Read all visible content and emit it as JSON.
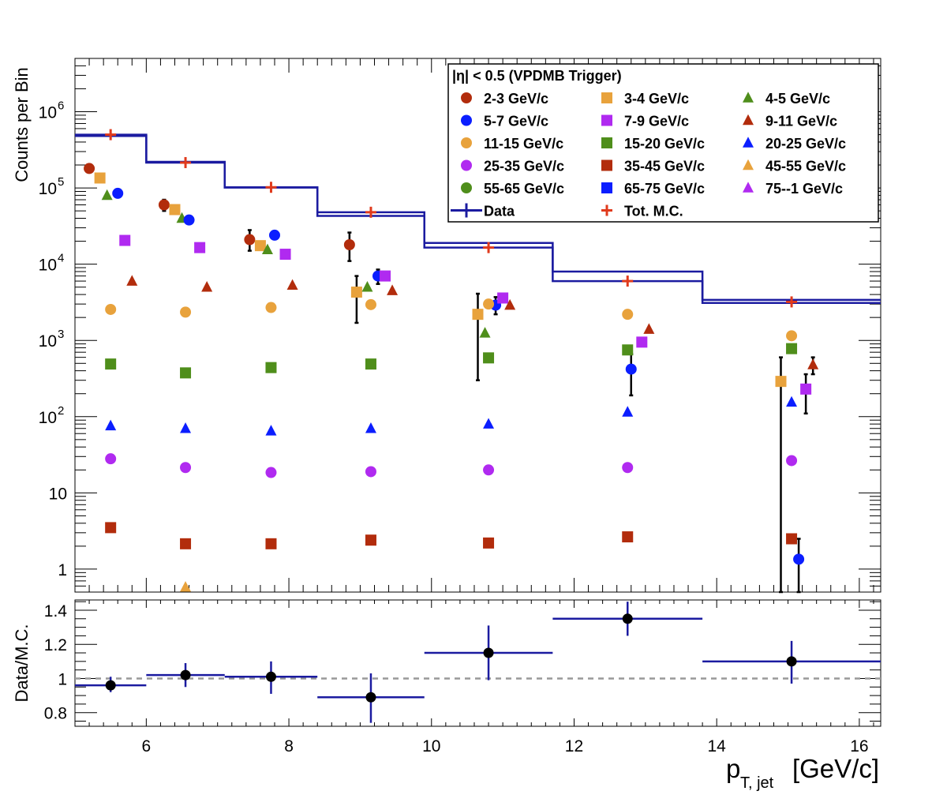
{
  "chart_data": [
    {
      "type": "scatter",
      "ylabel": "Counts per Bin",
      "xlabel": "p",
      "xlabel_sub": "T, jet",
      "xlabel_unit": "[GeV/c]",
      "xlim": [
        5.0,
        16.3
      ],
      "ylim": [
        0.5,
        5000000
      ],
      "yscale": "log",
      "grid": false,
      "x_ticks": [
        6,
        8,
        10,
        12,
        14,
        16
      ],
      "y_ticks": [
        {
          "value": 1,
          "label": "1",
          "exp": ""
        },
        {
          "value": 10,
          "label": "10",
          "exp": ""
        },
        {
          "value": 100,
          "label": "10",
          "exp": "2"
        },
        {
          "value": 1000,
          "label": "10",
          "exp": "3"
        },
        {
          "value": 10000,
          "label": "10",
          "exp": "4"
        },
        {
          "value": 100000,
          "label": "10",
          "exp": "5"
        },
        {
          "value": 1000000,
          "label": "10",
          "exp": "6"
        }
      ],
      "legend": {
        "placement": "top-right",
        "header": "|η| < 0.5 (VPDMB Trigger)",
        "entries": [
          {
            "label": "2-3 GeV/c",
            "color": "#b22c0c",
            "marker": "circle"
          },
          {
            "label": "3-4 GeV/c",
            "color": "#e8a23c",
            "marker": "square"
          },
          {
            "label": "4-5 GeV/c",
            "color": "#4f8e1b",
            "marker": "triangle"
          },
          {
            "label": "5-7 GeV/c",
            "color": "#0b1eff",
            "marker": "circle"
          },
          {
            "label": "7-9 GeV/c",
            "color": "#b02af0",
            "marker": "square"
          },
          {
            "label": "9-11 GeV/c",
            "color": "#b22c0c",
            "marker": "triangle"
          },
          {
            "label": "11-15 GeV/c",
            "color": "#e8a23c",
            "marker": "circle"
          },
          {
            "label": "15-20 GeV/c",
            "color": "#4f8e1b",
            "marker": "square"
          },
          {
            "label": "20-25 GeV/c",
            "color": "#0b1eff",
            "marker": "triangle"
          },
          {
            "label": "25-35 GeV/c",
            "color": "#b02af0",
            "marker": "circle"
          },
          {
            "label": "35-45 GeV/c",
            "color": "#b22c0c",
            "marker": "square"
          },
          {
            "label": "45-55 GeV/c",
            "color": "#e8a23c",
            "marker": "triangle"
          },
          {
            "label": "55-65 GeV/c",
            "color": "#4f8e1b",
            "marker": "circle"
          },
          {
            "label": "65-75 GeV/c",
            "color": "#0b1eff",
            "marker": "square"
          },
          {
            "label": "75--1 GeV/c",
            "color": "#b02af0",
            "marker": "triangle"
          },
          {
            "label": "Data",
            "color": "#1b1ba0",
            "marker": "cross-line"
          },
          {
            "label": "Tot. M.C.",
            "color": "#e03a1c",
            "marker": "plus"
          }
        ]
      },
      "data_histogram": {
        "name": "Data",
        "color": "#1b1ba0",
        "bins": [
          {
            "x0": 5.0,
            "x1": 6.0,
            "y": 500000,
            "ylo": 480000
          },
          {
            "x0": 6.0,
            "x1": 7.1,
            "y": 220000,
            "ylo": 215000
          },
          {
            "x0": 7.1,
            "x1": 8.4,
            "y": 102000,
            "ylo": 101000
          },
          {
            "x0": 8.4,
            "x1": 9.9,
            "y": 48000,
            "ylo": 43000
          },
          {
            "x0": 9.9,
            "x1": 11.7,
            "y": 19000,
            "ylo": 16500
          },
          {
            "x0": 11.7,
            "x1": 13.8,
            "y": 8000,
            "ylo": 6000
          },
          {
            "x0": 13.8,
            "x1": 16.3,
            "y": 3400,
            "ylo": 3100
          }
        ]
      },
      "mc_total": {
        "name": "Tot. M.C.",
        "color": "#e03a1c",
        "x": [
          5.5,
          6.55,
          7.75,
          9.15,
          10.8,
          12.75,
          15.05
        ],
        "y": [
          500000,
          215000,
          102000,
          48000,
          16500,
          6000,
          3200
        ]
      },
      "series": [
        {
          "name": "2-3 GeV/c",
          "color": "#b22c0c",
          "marker": "circle",
          "points": [
            {
              "x": 5.2,
              "y": 180000
            },
            {
              "x": 6.25,
              "y": 60000,
              "ylo": 50000,
              "yhi": 70000
            },
            {
              "x": 7.45,
              "y": 21000,
              "ylo": 15000,
              "yhi": 28000
            },
            {
              "x": 8.85,
              "y": 18000,
              "ylo": 11000,
              "yhi": 26000
            }
          ]
        },
        {
          "name": "3-4 GeV/c",
          "color": "#e8a23c",
          "marker": "square",
          "points": [
            {
              "x": 5.35,
              "y": 135000
            },
            {
              "x": 6.4,
              "y": 52000
            },
            {
              "x": 7.6,
              "y": 17500
            },
            {
              "x": 8.95,
              "y": 4300,
              "ylo": 1700,
              "yhi": 7000
            },
            {
              "x": 10.65,
              "y": 2200,
              "ylo": 300,
              "yhi": 4100
            },
            {
              "x": 14.9,
              "y": 290,
              "ylo": 0.5,
              "yhi": 600
            }
          ]
        },
        {
          "name": "4-5 GeV/c",
          "color": "#4f8e1b",
          "marker": "triangle",
          "points": [
            {
              "x": 5.45,
              "y": 80000
            },
            {
              "x": 6.5,
              "y": 40000
            },
            {
              "x": 7.7,
              "y": 15500
            },
            {
              "x": 9.1,
              "y": 5000
            },
            {
              "x": 10.75,
              "y": 1250
            }
          ]
        },
        {
          "name": "5-7 GeV/c",
          "color": "#0b1eff",
          "marker": "circle",
          "points": [
            {
              "x": 5.6,
              "y": 85000
            },
            {
              "x": 6.6,
              "y": 38000
            },
            {
              "x": 7.8,
              "y": 24000
            },
            {
              "x": 9.25,
              "y": 7000,
              "ylo": 5500,
              "yhi": 8500
            },
            {
              "x": 10.9,
              "y": 2900,
              "ylo": 2200,
              "yhi": 3700
            },
            {
              "x": 12.8,
              "y": 420,
              "ylo": 190,
              "yhi": 660
            },
            {
              "x": 15.15,
              "y": 1.35,
              "ylo": 0.5,
              "yhi": 2.5
            }
          ]
        },
        {
          "name": "7-9 GeV/c",
          "color": "#b02af0",
          "marker": "square",
          "points": [
            {
              "x": 5.7,
              "y": 20500
            },
            {
              "x": 6.75,
              "y": 16500
            },
            {
              "x": 7.95,
              "y": 13500
            },
            {
              "x": 9.35,
              "y": 7000
            },
            {
              "x": 11.0,
              "y": 3600
            },
            {
              "x": 12.95,
              "y": 950
            },
            {
              "x": 15.25,
              "y": 230,
              "ylo": 110,
              "yhi": 360
            }
          ]
        },
        {
          "name": "9-11 GeV/c",
          "color": "#b22c0c",
          "marker": "triangle",
          "points": [
            {
              "x": 5.8,
              "y": 6000
            },
            {
              "x": 6.85,
              "y": 5000
            },
            {
              "x": 8.05,
              "y": 5300
            },
            {
              "x": 9.45,
              "y": 4500
            },
            {
              "x": 11.1,
              "y": 2900
            },
            {
              "x": 13.05,
              "y": 1400
            },
            {
              "x": 15.35,
              "y": 480,
              "ylo": 360,
              "yhi": 600
            }
          ]
        },
        {
          "name": "11-15 GeV/c",
          "color": "#e8a23c",
          "marker": "circle",
          "points": [
            {
              "x": 5.5,
              "y": 2550
            },
            {
              "x": 6.55,
              "y": 2350
            },
            {
              "x": 7.75,
              "y": 2700
            },
            {
              "x": 9.15,
              "y": 2950
            },
            {
              "x": 10.8,
              "y": 3000
            },
            {
              "x": 12.75,
              "y": 2200
            },
            {
              "x": 15.05,
              "y": 1150
            }
          ]
        },
        {
          "name": "15-20 GeV/c",
          "color": "#4f8e1b",
          "marker": "square",
          "points": [
            {
              "x": 5.5,
              "y": 490
            },
            {
              "x": 6.55,
              "y": 375
            },
            {
              "x": 7.75,
              "y": 440
            },
            {
              "x": 9.15,
              "y": 490
            },
            {
              "x": 10.8,
              "y": 590
            },
            {
              "x": 12.75,
              "y": 750
            },
            {
              "x": 15.05,
              "y": 780
            }
          ]
        },
        {
          "name": "20-25 GeV/c",
          "color": "#0b1eff",
          "marker": "triangle",
          "points": [
            {
              "x": 5.5,
              "y": 76
            },
            {
              "x": 6.55,
              "y": 70
            },
            {
              "x": 7.75,
              "y": 65
            },
            {
              "x": 9.15,
              "y": 70
            },
            {
              "x": 10.8,
              "y": 80
            },
            {
              "x": 12.75,
              "y": 115
            },
            {
              "x": 15.05,
              "y": 155
            }
          ]
        },
        {
          "name": "25-35 GeV/c",
          "color": "#b02af0",
          "marker": "circle",
          "points": [
            {
              "x": 5.5,
              "y": 28
            },
            {
              "x": 6.55,
              "y": 21.5
            },
            {
              "x": 7.75,
              "y": 18.5
            },
            {
              "x": 9.15,
              "y": 19
            },
            {
              "x": 10.8,
              "y": 20
            },
            {
              "x": 12.75,
              "y": 21.5
            },
            {
              "x": 15.05,
              "y": 26.5
            }
          ]
        },
        {
          "name": "35-45 GeV/c",
          "color": "#b22c0c",
          "marker": "square",
          "points": [
            {
              "x": 5.5,
              "y": 3.5
            },
            {
              "x": 6.55,
              "y": 2.15
            },
            {
              "x": 7.75,
              "y": 2.15
            },
            {
              "x": 9.15,
              "y": 2.4
            },
            {
              "x": 10.8,
              "y": 2.2
            },
            {
              "x": 12.75,
              "y": 2.65
            },
            {
              "x": 15.05,
              "y": 2.5
            }
          ]
        },
        {
          "name": "45-55 GeV/c",
          "color": "#e8a23c",
          "marker": "triangle",
          "points": [
            {
              "x": 6.55,
              "y": 0.58
            }
          ]
        }
      ]
    },
    {
      "type": "scatter",
      "ylabel": "Data/M.C.",
      "xlim": [
        5.0,
        16.3
      ],
      "ylim": [
        0.72,
        1.46
      ],
      "x_ticks": [
        6,
        8,
        10,
        12,
        14,
        16
      ],
      "y_ticks": [
        {
          "value": 0.8,
          "label": "0.8"
        },
        {
          "value": 1.0,
          "label": "1"
        },
        {
          "value": 1.2,
          "label": "1.2"
        },
        {
          "value": 1.4,
          "label": "1.4"
        }
      ],
      "reference_line": 1.0,
      "points": [
        {
          "x": 5.5,
          "x0": 5.0,
          "x1": 6.0,
          "y": 0.96,
          "ylo": 0.92,
          "yhi": 1.01
        },
        {
          "x": 6.55,
          "x0": 6.0,
          "x1": 7.1,
          "y": 1.02,
          "ylo": 0.95,
          "yhi": 1.09
        },
        {
          "x": 7.75,
          "x0": 7.1,
          "x1": 8.4,
          "y": 1.01,
          "ylo": 0.91,
          "yhi": 1.1
        },
        {
          "x": 9.15,
          "x0": 8.4,
          "x1": 9.9,
          "y": 0.89,
          "ylo": 0.74,
          "yhi": 1.03
        },
        {
          "x": 10.8,
          "x0": 9.9,
          "x1": 11.7,
          "y": 1.15,
          "ylo": 0.99,
          "yhi": 1.31
        },
        {
          "x": 12.75,
          "x0": 11.7,
          "x1": 13.8,
          "y": 1.35,
          "ylo": 1.25,
          "yhi": 1.45
        },
        {
          "x": 15.05,
          "x0": 13.8,
          "x1": 16.3,
          "y": 1.1,
          "ylo": 0.97,
          "yhi": 1.22
        }
      ]
    }
  ]
}
